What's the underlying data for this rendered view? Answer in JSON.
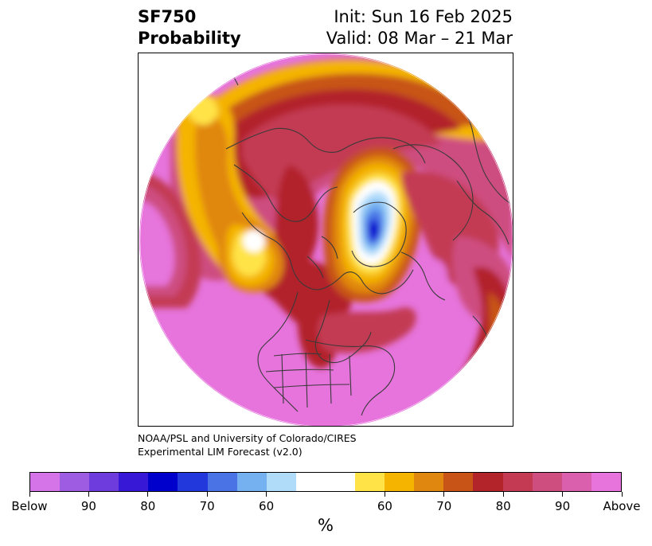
{
  "header": {
    "variable": "SF750",
    "product": "Probability",
    "init": "Init: Sun 16 Feb 2025",
    "valid": "Valid: 08 Mar – 21 Mar"
  },
  "credit": {
    "line1": "NOAA/PSL and University of Colorado/CIRES",
    "line2": "Experimental LIM Forecast (v2.0)"
  },
  "colorbar": {
    "unit": "%",
    "colors": [
      "#d574e8",
      "#9d5ce2",
      "#6e3bdc",
      "#3718d6",
      "#0000cc",
      "#2238dc",
      "#4a74e6",
      "#75b0f0",
      "#b0dcfa",
      "#ffffff",
      "#ffffff",
      "#ffe347",
      "#f4b400",
      "#e0870f",
      "#c85418",
      "#b2232a",
      "#c33a52",
      "#ce4e80",
      "#da60ad",
      "#e674dc"
    ],
    "tick_labels": [
      "Below",
      "90",
      "80",
      "70",
      "60",
      "60",
      "70",
      "80",
      "90",
      "Above"
    ]
  },
  "map": {
    "projection": "north-polar-stereographic",
    "features": [
      "coastlines",
      "country-borders",
      "us-state-borders"
    ],
    "background_fill": "#e674dc",
    "blue_low_center": "eastern Siberia",
    "white_patch": "Alaska"
  }
}
